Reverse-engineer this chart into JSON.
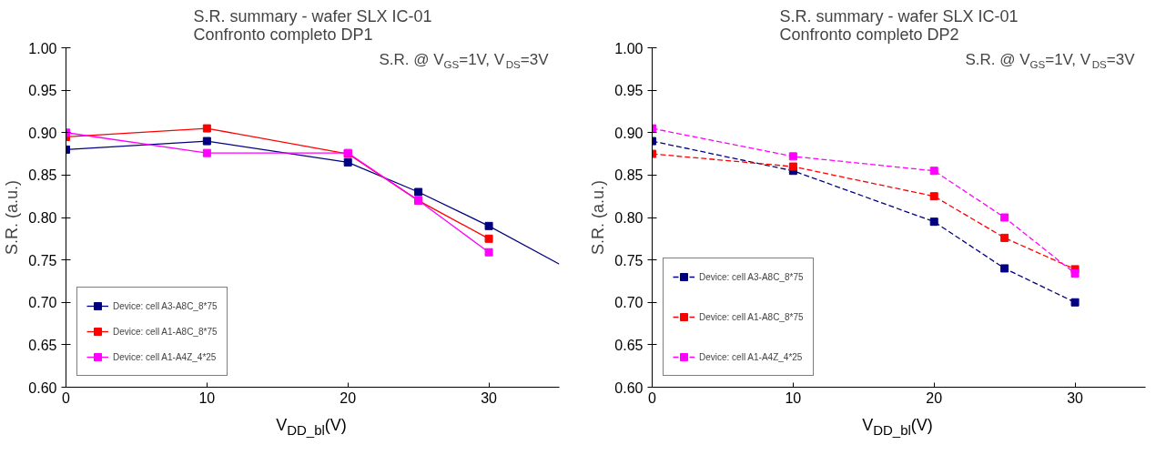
{
  "chart_data": [
    {
      "type": "line",
      "title": "S.R. summary - wafer SLX IC-01\nConfronto completo DP1",
      "xlabel": "V$_{DD_bl}$(V)",
      "ylabel": "S.R. (a.u.)",
      "x": [
        0,
        10,
        20,
        25,
        30
      ],
      "xlim": [
        0,
        35
      ],
      "xticks": [
        0,
        10,
        20,
        30
      ],
      "ylim": [
        0.6,
        1.0
      ],
      "yticks": [
        {
          "value": 0.6,
          "label": "0.60"
        },
        {
          "value": 0.65,
          "label": "0.65"
        },
        {
          "value": 0.7,
          "label": "0.70"
        },
        {
          "value": 0.75,
          "label": "0.75"
        },
        {
          "value": 0.8,
          "label": "0.80"
        },
        {
          "value": 0.85,
          "label": "0.85"
        },
        {
          "value": 0.9,
          "label": "0.90"
        },
        {
          "value": 0.95,
          "label": "0.95"
        },
        {
          "value": 1.0,
          "label": "1.00"
        }
      ],
      "series": [
        {
          "name": "Device: cell A3-A8C_8*75",
          "color": "#000080",
          "values": [
            0.88,
            0.89,
            0.865,
            0.83,
            0.79
          ]
        },
        {
          "name": "Device: cell A1-A8C_8*75",
          "color": "#ff0000",
          "values": [
            0.895,
            0.905,
            0.875,
            0.82,
            0.775
          ]
        },
        {
          "name": "Device: cell A1-A4Z_4*25",
          "color": "#ff00ff",
          "values": [
            0.9,
            0.876,
            0.876,
            0.82,
            0.759
          ]
        },
        {
          "type": "line",
          "x": [
            30,
            35
          ],
          "color": "#000080",
          "values": [
            0.79,
            0.745
          ],
          "marker": "none"
        }
      ],
      "annotations": [
        "S.R. @ V$_{GS}$=1V, V$_{DS}$=3V"
      ],
      "marker": "square",
      "line_style": "solid",
      "legend": "bottom left",
      "grid": false
    },
    {
      "type": "line",
      "title": "S.R. summary - wafer SLX IC-01\nConfronto completo DP2",
      "xlabel": "V$_{DD_bl}$(V)",
      "ylabel": "S.R. (a.u.)",
      "x": [
        0,
        10,
        20,
        25,
        30
      ],
      "xlim": [
        0,
        35
      ],
      "xticks": [
        0,
        10,
        20,
        30
      ],
      "ylim": [
        0.6,
        1.0
      ],
      "yticks": [
        {
          "value": 0.6,
          "label": "0.60"
        },
        {
          "value": 0.65,
          "label": "0.65"
        },
        {
          "value": 0.7,
          "label": "0.70"
        },
        {
          "value": 0.75,
          "label": "0.75"
        },
        {
          "value": 0.8,
          "label": "0.80"
        },
        {
          "value": 0.85,
          "label": "0.85"
        },
        {
          "value": 0.9,
          "label": "0.90"
        },
        {
          "value": 0.95,
          "label": "0.95"
        },
        {
          "value": 1.0,
          "label": "1.00"
        }
      ],
      "series": [
        {
          "name": "Device: cell A3-A8C_8*75",
          "color": "#000080",
          "values": [
            0.89,
            0.855,
            0.795,
            0.74,
            0.7
          ]
        },
        {
          "name": "Device: cell A1-A8C_8*75",
          "color": "#ff0000",
          "values": [
            0.875,
            0.86,
            0.825,
            0.776,
            0.739
          ]
        },
        {
          "name": "Device: cell A1-A4Z_4*25",
          "color": "#ff00ff",
          "values": [
            0.905,
            0.872,
            0.855,
            0.8,
            0.734
          ]
        }
      ],
      "annotations": [
        "S.R. @ V$_{GS}$=1V, V$_{DS}$=3V"
      ],
      "marker": "square",
      "line_style": "dashed",
      "legend": "bottom left",
      "grid": false
    }
  ]
}
